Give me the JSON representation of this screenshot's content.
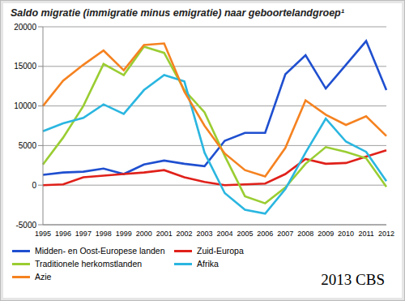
{
  "chart_data": {
    "type": "line",
    "title": "Saldo migratie (immigratie minus emigratie) naar geboortelandgroep¹",
    "categories": [
      "1995",
      "1996",
      "1997",
      "1998",
      "1999",
      "2000",
      "2001",
      "2002",
      "2003",
      "2004",
      "2005",
      "2006",
      "2007",
      "2008",
      "2009",
      "2010",
      "2011",
      "2012"
    ],
    "series": [
      {
        "name": "Midden- en Oost-Europese landen",
        "color": "#1f4fd0",
        "values": [
          1300,
          1600,
          1700,
          2100,
          1400,
          2600,
          3100,
          2700,
          2400,
          5600,
          6600,
          6600,
          14000,
          16400,
          12200,
          15200,
          18200,
          12000
        ]
      },
      {
        "name": "Zuid-Europa",
        "color": "#e0201a",
        "values": [
          0,
          100,
          1000,
          1200,
          1400,
          1600,
          1900,
          1000,
          400,
          0,
          100,
          200,
          1400,
          3300,
          2700,
          2800,
          3600,
          4400
        ]
      },
      {
        "name": "Traditionele herkomstlanden",
        "color": "#9acd32",
        "values": [
          2600,
          6000,
          10000,
          15300,
          13900,
          17500,
          16700,
          12000,
          9200,
          3700,
          -1400,
          -2300,
          -300,
          2700,
          4800,
          4200,
          3400,
          -200
        ]
      },
      {
        "name": "Afrika",
        "color": "#2ab6e0",
        "values": [
          6800,
          7800,
          8500,
          10200,
          9000,
          12000,
          13900,
          13100,
          4100,
          -1000,
          -3100,
          -3600,
          -500,
          4100,
          8400,
          5500,
          4200,
          500
        ]
      },
      {
        "name": "Azie",
        "color": "#f58220",
        "values": [
          10000,
          13200,
          15200,
          17000,
          14500,
          17700,
          17900,
          11800,
          7500,
          4000,
          1900,
          1100,
          4700,
          10700,
          8900,
          7600,
          8700,
          6200
        ]
      }
    ],
    "ylim": [
      -5000,
      20000
    ],
    "yticks": [
      -5000,
      0,
      5000,
      10000,
      15000,
      20000
    ],
    "grid": true,
    "legend": "bottom",
    "annotations": [
      "2013 CBS"
    ]
  }
}
